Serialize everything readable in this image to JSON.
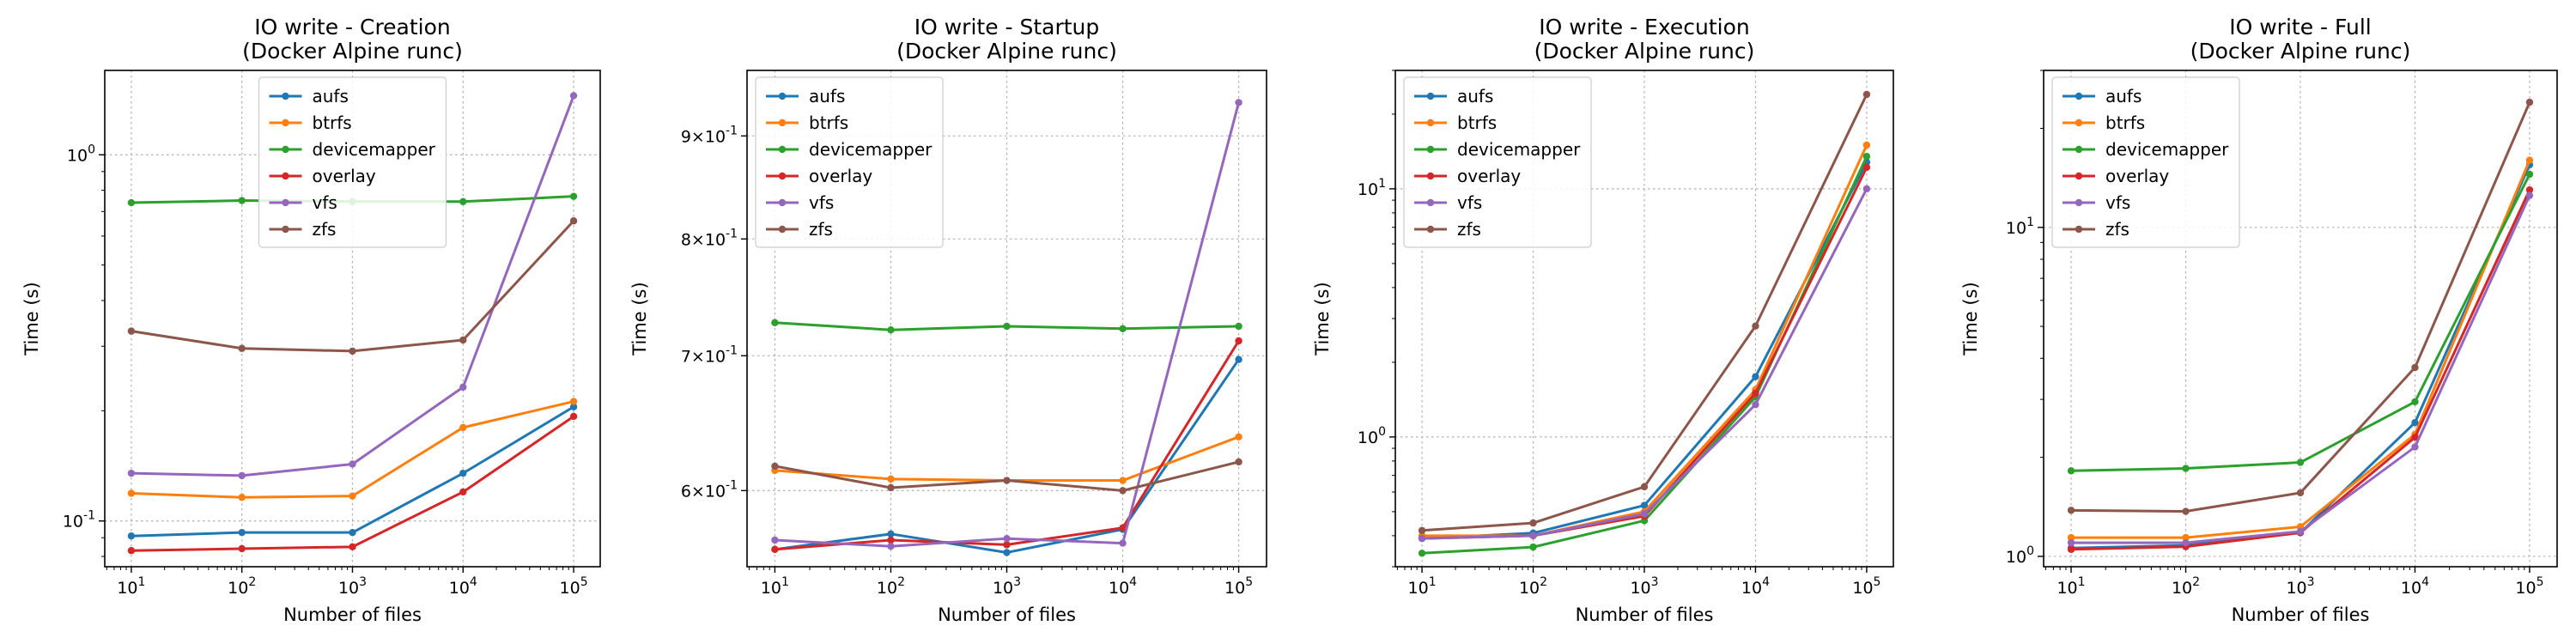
{
  "colors": {
    "aufs": "#1f77b4",
    "btrfs": "#ff7f0e",
    "devicemapper": "#2ca02c",
    "overlay": "#d62728",
    "vfs": "#9467bd",
    "zfs": "#8c564b"
  },
  "chart_data": [
    {
      "type": "line",
      "title": "IO write - Creation\n(Docker Alpine runc)",
      "xlabel": "Number of files",
      "ylabel": "Time (s)",
      "xscale": "log",
      "yscale": "log",
      "grid": true,
      "legend": "upper-center",
      "x": [
        10,
        100,
        1000,
        10000,
        100000
      ],
      "xticklabels": [
        "10^1",
        "10^2",
        "10^3",
        "10^4",
        "10^5"
      ],
      "ylim": [
        0.075,
        1.7
      ],
      "ymajor": [
        {
          "value": 0.1,
          "label": "10^-1"
        },
        {
          "value": 1,
          "label": "10^0"
        }
      ],
      "series": [
        {
          "name": "aufs",
          "values": [
            0.091,
            0.093,
            0.093,
            0.135,
            0.205
          ]
        },
        {
          "name": "btrfs",
          "values": [
            0.119,
            0.116,
            0.117,
            0.18,
            0.212
          ]
        },
        {
          "name": "devicemapper",
          "values": [
            0.74,
            0.75,
            0.745,
            0.745,
            0.77
          ]
        },
        {
          "name": "overlay",
          "values": [
            0.083,
            0.084,
            0.085,
            0.12,
            0.193
          ]
        },
        {
          "name": "vfs",
          "values": [
            0.135,
            0.133,
            0.143,
            0.232,
            1.45
          ]
        },
        {
          "name": "zfs",
          "values": [
            0.33,
            0.296,
            0.291,
            0.312,
            0.66
          ]
        }
      ]
    },
    {
      "type": "line",
      "title": "IO write - Startup\n(Docker Alpine runc)",
      "xlabel": "Number of files",
      "ylabel": "Time (s)",
      "xscale": "log",
      "yscale": "log",
      "grid": true,
      "legend": "upper-left",
      "x": [
        10,
        100,
        1000,
        10000,
        100000
      ],
      "xticklabels": [
        "10^1",
        "10^2",
        "10^3",
        "10^4",
        "10^5"
      ],
      "ylim": [
        0.55,
        0.97
      ],
      "ymajor": [
        {
          "value": 0.6,
          "label": "6×10^-1"
        },
        {
          "value": 0.7,
          "label": "7×10^-1"
        },
        {
          "value": 0.8,
          "label": "8×10^-1"
        },
        {
          "value": 0.9,
          "label": "9×10^-1"
        }
      ],
      "series": [
        {
          "name": "aufs",
          "values": [
            0.561,
            0.571,
            0.559,
            0.574,
            0.697
          ]
        },
        {
          "name": "btrfs",
          "values": [
            0.614,
            0.608,
            0.607,
            0.607,
            0.638
          ]
        },
        {
          "name": "devicemapper",
          "values": [
            0.727,
            0.721,
            0.724,
            0.722,
            0.724
          ]
        },
        {
          "name": "overlay",
          "values": [
            0.561,
            0.567,
            0.564,
            0.575,
            0.712
          ]
        },
        {
          "name": "vfs",
          "values": [
            0.567,
            0.563,
            0.568,
            0.565,
            0.935
          ]
        },
        {
          "name": "zfs",
          "values": [
            0.617,
            0.602,
            0.607,
            0.6,
            0.62
          ]
        }
      ]
    },
    {
      "type": "line",
      "title": "IO write - Execution\n(Docker Alpine runc)",
      "xlabel": "Number of files",
      "ylabel": "Time (s)",
      "xscale": "log",
      "yscale": "log",
      "grid": true,
      "legend": "upper-left",
      "x": [
        10,
        100,
        1000,
        10000,
        100000
      ],
      "xticklabels": [
        "10^1",
        "10^2",
        "10^3",
        "10^4",
        "10^5"
      ],
      "ylim": [
        0.3,
        30
      ],
      "ymajor": [
        {
          "value": 1,
          "label": "10^0"
        },
        {
          "value": 10,
          "label": "10^1"
        }
      ],
      "series": [
        {
          "name": "aufs",
          "values": [
            0.39,
            0.41,
            0.53,
            1.75,
            12.8
          ]
        },
        {
          "name": "btrfs",
          "values": [
            0.4,
            0.4,
            0.5,
            1.55,
            15.0
          ]
        },
        {
          "name": "devicemapper",
          "values": [
            0.34,
            0.36,
            0.46,
            1.45,
            13.5
          ]
        },
        {
          "name": "overlay",
          "values": [
            0.39,
            0.4,
            0.48,
            1.5,
            12.2
          ]
        },
        {
          "name": "vfs",
          "values": [
            0.39,
            0.4,
            0.49,
            1.35,
            10.0
          ]
        },
        {
          "name": "zfs",
          "values": [
            0.42,
            0.45,
            0.63,
            2.8,
            24.0
          ]
        }
      ]
    },
    {
      "type": "line",
      "title": "IO write - Full\n(Docker Alpine runc)",
      "xlabel": "Number of files",
      "ylabel": "Time (s)",
      "xscale": "log",
      "yscale": "log",
      "grid": true,
      "legend": "upper-left",
      "x": [
        10,
        100,
        1000,
        10000,
        100000
      ],
      "xticklabels": [
        "10^1",
        "10^2",
        "10^3",
        "10^4",
        "10^5"
      ],
      "ylim": [
        0.93,
        30
      ],
      "ymajor": [
        {
          "value": 1,
          "label": "10^0"
        },
        {
          "value": 10,
          "label": "10^1"
        }
      ],
      "series": [
        {
          "name": "aufs",
          "values": [
            1.06,
            1.08,
            1.18,
            2.55,
            15.5
          ]
        },
        {
          "name": "btrfs",
          "values": [
            1.14,
            1.14,
            1.23,
            2.35,
            16.0
          ]
        },
        {
          "name": "devicemapper",
          "values": [
            1.82,
            1.85,
            1.93,
            2.95,
            14.5
          ]
        },
        {
          "name": "overlay",
          "values": [
            1.05,
            1.07,
            1.18,
            2.3,
            13.0
          ]
        },
        {
          "name": "vfs",
          "values": [
            1.1,
            1.1,
            1.19,
            2.15,
            12.5
          ]
        },
        {
          "name": "zfs",
          "values": [
            1.38,
            1.37,
            1.56,
            3.75,
            24.0
          ]
        }
      ]
    }
  ]
}
